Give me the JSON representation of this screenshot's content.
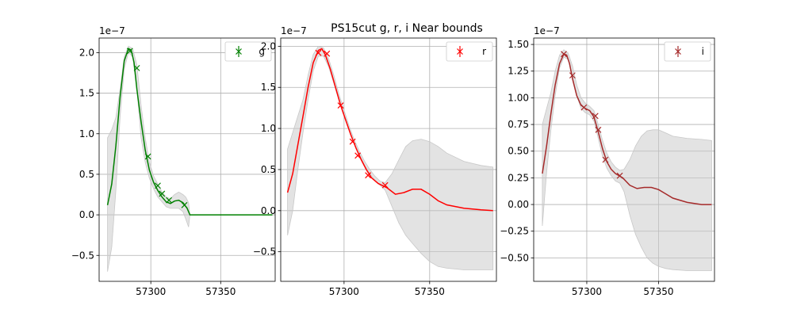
{
  "figure": {
    "suptitle": "PS15cut  g, r, i Near bounds"
  },
  "chart_data": [
    {
      "type": "line",
      "band": "g",
      "color": "#008000",
      "band_fill": "#c8c8c8",
      "offset_label": "1e−7",
      "scale": 1e-07,
      "grid": true,
      "legend": {
        "position": "top-right",
        "label": "g"
      },
      "xlim": [
        57263,
        57389
      ],
      "ylim": [
        -0.82,
        2.18
      ],
      "xticks": [
        57300,
        57350
      ],
      "yticks": [
        -0.5,
        0.0,
        0.5,
        1.0,
        1.5,
        2.0
      ],
      "ytick_labels": [
        "−0.5",
        "0.0",
        "0.5",
        "1.0",
        "1.5",
        "2.0"
      ],
      "points": [
        {
          "x": 57285,
          "y": 2.02
        },
        {
          "x": 57290,
          "y": 1.81
        },
        {
          "x": 57298,
          "y": 0.72
        },
        {
          "x": 57305,
          "y": 0.36
        },
        {
          "x": 57308,
          "y": 0.26
        },
        {
          "x": 57313,
          "y": 0.18
        },
        {
          "x": 57324,
          "y": 0.12
        }
      ],
      "curve": {
        "x": [
          57269,
          57272,
          57275,
          57278,
          57281,
          57284,
          57286,
          57288,
          57290,
          57293,
          57296,
          57299,
          57302,
          57305,
          57308,
          57311,
          57314,
          57317,
          57320,
          57323,
          57326,
          57328,
          57332,
          57340,
          57360,
          57387
        ],
        "y": [
          0.12,
          0.38,
          0.85,
          1.45,
          1.9,
          2.05,
          2.03,
          1.88,
          1.55,
          1.15,
          0.8,
          0.55,
          0.4,
          0.3,
          0.22,
          0.16,
          0.14,
          0.17,
          0.18,
          0.15,
          0.08,
          0.0,
          0.0,
          0.0,
          0.0,
          0.0
        ]
      },
      "band_region": {
        "x": [
          57269,
          57272,
          57275,
          57278,
          57281,
          57284,
          57287,
          57290,
          57293,
          57296,
          57299,
          57302,
          57305,
          57308,
          57311,
          57314,
          57317,
          57320,
          57323,
          57325,
          57327,
          57328
        ],
        "upper": [
          0.95,
          1.05,
          1.2,
          1.55,
          1.95,
          2.08,
          2.05,
          1.85,
          1.35,
          0.95,
          0.65,
          0.48,
          0.38,
          0.28,
          0.22,
          0.2,
          0.25,
          0.28,
          0.25,
          0.22,
          0.15,
          0.0
        ],
        "lower": [
          -0.7,
          -0.4,
          0.3,
          1.2,
          1.8,
          2.0,
          1.95,
          1.55,
          0.95,
          0.65,
          0.45,
          0.32,
          0.22,
          0.16,
          0.1,
          0.08,
          0.08,
          0.08,
          0.04,
          -0.05,
          -0.15,
          0.0
        ]
      }
    },
    {
      "type": "line",
      "band": "r",
      "color": "#ff0000",
      "band_fill": "#c8c8c8",
      "offset_label": "1e−7",
      "scale": 1e-07,
      "grid": true,
      "legend": {
        "position": "top-right",
        "label": "r"
      },
      "xlim": [
        57263,
        57389
      ],
      "ylim": [
        -0.86,
        2.1
      ],
      "xticks": [
        57300,
        57350
      ],
      "yticks": [
        -0.5,
        0.0,
        0.5,
        1.0,
        1.5,
        2.0
      ],
      "ytick_labels": [
        "−0.5",
        "0.0",
        "0.5",
        "1.0",
        "1.5",
        "2.0"
      ],
      "points": [
        {
          "x": 57285,
          "y": 1.92
        },
        {
          "x": 57290,
          "y": 1.91
        },
        {
          "x": 57298,
          "y": 1.28
        },
        {
          "x": 57305,
          "y": 0.84
        },
        {
          "x": 57308,
          "y": 0.67
        },
        {
          "x": 57314,
          "y": 0.43
        },
        {
          "x": 57324,
          "y": 0.31
        }
      ],
      "curve": {
        "x": [
          57267,
          57270,
          57273,
          57276,
          57279,
          57282,
          57285,
          57287,
          57289,
          57292,
          57295,
          57298,
          57301,
          57304,
          57307,
          57310,
          57313,
          57316,
          57320,
          57325,
          57330,
          57335,
          57340,
          57345,
          57350,
          57355,
          57360,
          57370,
          57380,
          57387
        ],
        "y": [
          0.22,
          0.45,
          0.8,
          1.15,
          1.5,
          1.8,
          1.95,
          1.97,
          1.9,
          1.72,
          1.5,
          1.28,
          1.1,
          0.92,
          0.76,
          0.62,
          0.5,
          0.4,
          0.33,
          0.28,
          0.2,
          0.22,
          0.26,
          0.26,
          0.2,
          0.12,
          0.07,
          0.03,
          0.01,
          0.0
        ]
      },
      "band_region": {
        "x": [
          57267,
          57270,
          57273,
          57276,
          57279,
          57282,
          57285,
          57288,
          57291,
          57294,
          57297,
          57300,
          57303,
          57306,
          57309,
          57312,
          57315,
          57318,
          57321,
          57324,
          57328,
          57332,
          57336,
          57340,
          57345,
          57350,
          57355,
          57360,
          57370,
          57380,
          57387
        ],
        "upper": [
          0.75,
          0.95,
          1.15,
          1.35,
          1.65,
          1.9,
          2.0,
          1.98,
          1.85,
          1.65,
          1.42,
          1.22,
          1.03,
          0.86,
          0.72,
          0.6,
          0.5,
          0.42,
          0.36,
          0.34,
          0.45,
          0.62,
          0.78,
          0.85,
          0.87,
          0.84,
          0.78,
          0.7,
          0.6,
          0.55,
          0.53
        ],
        "lower": [
          -0.3,
          0.0,
          0.5,
          0.95,
          1.35,
          1.7,
          1.88,
          1.88,
          1.75,
          1.55,
          1.34,
          1.16,
          0.98,
          0.82,
          0.68,
          0.55,
          0.45,
          0.37,
          0.31,
          0.25,
          0.05,
          -0.15,
          -0.3,
          -0.4,
          -0.52,
          -0.62,
          -0.68,
          -0.7,
          -0.72,
          -0.72,
          -0.72
        ]
      }
    },
    {
      "type": "line",
      "band": "i",
      "color": "#a52a2a",
      "band_fill": "#c8c8c8",
      "offset_label": "1e−7",
      "scale": 1e-07,
      "grid": true,
      "legend": {
        "position": "top-right",
        "label": "i"
      },
      "xlim": [
        57263,
        57389
      ],
      "ylim": [
        -0.72,
        1.56
      ],
      "xticks": [
        57300,
        57350
      ],
      "yticks": [
        -0.5,
        -0.25,
        0.0,
        0.25,
        0.5,
        0.75,
        1.0,
        1.25,
        1.5
      ],
      "ytick_labels": [
        "−0.50",
        "−0.25",
        "0.00",
        "0.25",
        "0.50",
        "0.75",
        "1.00",
        "1.25",
        "1.50"
      ],
      "points": [
        {
          "x": 57284,
          "y": 1.41
        },
        {
          "x": 57290,
          "y": 1.21
        },
        {
          "x": 57298,
          "y": 0.91
        },
        {
          "x": 57306,
          "y": 0.83
        },
        {
          "x": 57308,
          "y": 0.7
        },
        {
          "x": 57313,
          "y": 0.42
        },
        {
          "x": 57323,
          "y": 0.27
        }
      ],
      "curve": {
        "x": [
          57269,
          57272,
          57275,
          57278,
          57281,
          57284,
          57286,
          57288,
          57290,
          57293,
          57296,
          57299,
          57302,
          57305,
          57308,
          57311,
          57314,
          57317,
          57320,
          57325,
          57330,
          57335,
          57340,
          57345,
          57350,
          57355,
          57360,
          57370,
          57380,
          57387
        ],
        "y": [
          0.29,
          0.55,
          0.85,
          1.12,
          1.32,
          1.41,
          1.4,
          1.32,
          1.18,
          1.02,
          0.93,
          0.9,
          0.88,
          0.82,
          0.68,
          0.52,
          0.4,
          0.33,
          0.29,
          0.25,
          0.18,
          0.15,
          0.16,
          0.16,
          0.14,
          0.1,
          0.06,
          0.02,
          0.0,
          0.0
        ]
      },
      "band_region": {
        "x": [
          57269,
          57272,
          57275,
          57278,
          57281,
          57284,
          57287,
          57290,
          57293,
          57296,
          57299,
          57302,
          57305,
          57308,
          57311,
          57314,
          57317,
          57320,
          57323,
          57326,
          57330,
          57334,
          57338,
          57342,
          57346,
          57350,
          57355,
          57360,
          57370,
          57380,
          57387
        ],
        "upper": [
          0.75,
          0.9,
          1.05,
          1.25,
          1.4,
          1.45,
          1.42,
          1.3,
          1.12,
          1.0,
          0.95,
          0.92,
          0.88,
          0.75,
          0.6,
          0.48,
          0.4,
          0.35,
          0.32,
          0.33,
          0.42,
          0.55,
          0.64,
          0.69,
          0.7,
          0.7,
          0.67,
          0.64,
          0.62,
          0.61,
          0.6
        ],
        "lower": [
          -0.2,
          0.3,
          0.7,
          1.02,
          1.28,
          1.38,
          1.36,
          1.2,
          1.02,
          0.9,
          0.86,
          0.84,
          0.78,
          0.62,
          0.45,
          0.34,
          0.27,
          0.22,
          0.2,
          0.12,
          -0.1,
          -0.28,
          -0.4,
          -0.5,
          -0.55,
          -0.58,
          -0.6,
          -0.61,
          -0.62,
          -0.62,
          -0.62
        ]
      }
    }
  ]
}
